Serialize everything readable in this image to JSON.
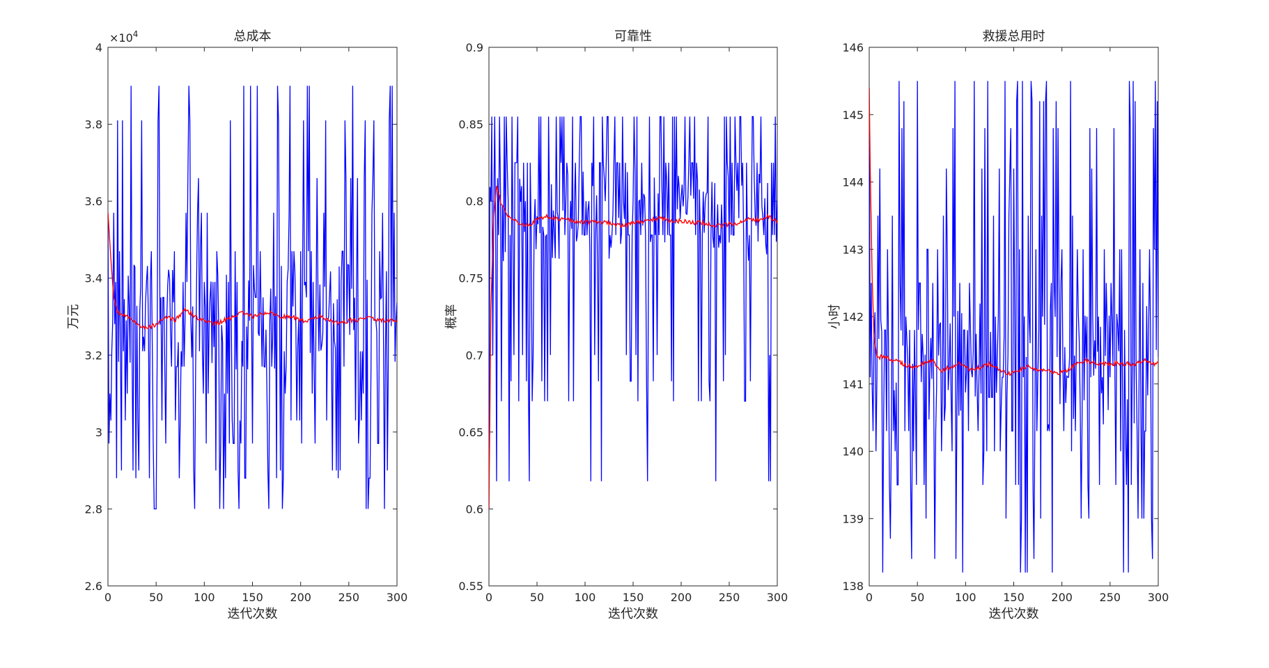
{
  "figure": {
    "background": "#ffffff"
  },
  "colors": {
    "raw": "#0000ff",
    "mean": "#ff0000",
    "axis": "#262626"
  },
  "chart_data": [
    {
      "type": "line",
      "title": "总成本",
      "xlabel": "迭代次数",
      "ylabel": "万元",
      "xlim": [
        0,
        300
      ],
      "ylim": [
        26000,
        40000
      ],
      "xticks": [
        0,
        50,
        100,
        150,
        200,
        250,
        300
      ],
      "xtick_labels": [
        "0",
        "50",
        "100",
        "150",
        "200",
        "250",
        "300"
      ],
      "yticks": [
        26000,
        28000,
        30000,
        32000,
        34000,
        36000,
        38000,
        40000
      ],
      "ytick_labels": [
        "2.6",
        "2.8",
        "3",
        "3.2",
        "3.4",
        "3.6",
        "3.8",
        "4"
      ],
      "yexponent": "×10",
      "yexponent_power": "4",
      "grid": false,
      "series": [
        {
          "color": "#0000ff",
          "style": "oscillating",
          "start": 35700,
          "levels": [
            28000,
            28800,
            29000,
            29700,
            30300,
            31000,
            31700,
            32100,
            32900,
            33500,
            33900,
            34700,
            35700,
            36600,
            38100,
            39000
          ],
          "low": 28000,
          "high": 39000,
          "typical": 33000
        },
        {
          "color": "#ff0000",
          "style": "running-mean",
          "x": [
            0,
            3,
            6,
            10,
            20,
            30,
            40,
            50,
            60,
            70,
            80,
            90,
            100,
            110,
            120,
            130,
            140,
            150,
            160,
            170,
            180,
            190,
            200,
            210,
            220,
            230,
            240,
            250,
            260,
            270,
            280,
            290,
            300
          ],
          "y": [
            35700,
            34500,
            33500,
            33100,
            33000,
            32800,
            32700,
            32800,
            33000,
            32900,
            33200,
            33000,
            32900,
            32800,
            32900,
            33000,
            33100,
            33000,
            33100,
            33100,
            33000,
            33000,
            32900,
            32900,
            33000,
            32900,
            32800,
            32900,
            32900,
            33000,
            32900,
            32900,
            32900
          ]
        }
      ]
    },
    {
      "type": "line",
      "title": "可靠性",
      "xlabel": "迭代次数",
      "ylabel": "概率",
      "xlim": [
        0,
        300
      ],
      "ylim": [
        0.55,
        0.9
      ],
      "xticks": [
        0,
        50,
        100,
        150,
        200,
        250,
        300
      ],
      "xtick_labels": [
        "0",
        "50",
        "100",
        "150",
        "200",
        "250",
        "300"
      ],
      "yticks": [
        0.55,
        0.6,
        0.65,
        0.7,
        0.75,
        0.8,
        0.85,
        0.9
      ],
      "ytick_labels": [
        "0.55",
        "0.6",
        "0.65",
        "0.7",
        "0.75",
        "0.8",
        "0.85",
        "0.9"
      ],
      "grid": false,
      "series": [
        {
          "color": "#0000ff",
          "style": "oscillating",
          "start": 0.6,
          "levels": [
            0.618,
            0.67,
            0.683,
            0.7,
            0.778,
            0.778,
            0.778,
            0.8,
            0.825,
            0.825,
            0.825,
            0.855,
            0.855,
            0.855
          ],
          "low": 0.618,
          "high": 0.855,
          "typical": 0.79
        },
        {
          "color": "#ff0000",
          "style": "running-mean",
          "x": [
            0,
            2,
            5,
            8,
            12,
            20,
            30,
            40,
            50,
            60,
            70,
            80,
            90,
            100,
            110,
            120,
            130,
            140,
            150,
            160,
            170,
            180,
            190,
            200,
            210,
            220,
            230,
            240,
            250,
            260,
            270,
            280,
            290,
            300
          ],
          "y": [
            0.6,
            0.73,
            0.79,
            0.81,
            0.8,
            0.79,
            0.786,
            0.784,
            0.788,
            0.79,
            0.789,
            0.788,
            0.787,
            0.786,
            0.787,
            0.786,
            0.785,
            0.784,
            0.786,
            0.787,
            0.788,
            0.789,
            0.787,
            0.787,
            0.786,
            0.786,
            0.785,
            0.784,
            0.785,
            0.786,
            0.789,
            0.788,
            0.79,
            0.787
          ]
        }
      ]
    },
    {
      "type": "line",
      "title": "救援总用时",
      "xlabel": "迭代次数",
      "ylabel": "小时",
      "xlim": [
        0,
        300
      ],
      "ylim": [
        138,
        146
      ],
      "xticks": [
        0,
        50,
        100,
        150,
        200,
        250,
        300
      ],
      "xtick_labels": [
        "0",
        "50",
        "100",
        "150",
        "200",
        "250",
        "300"
      ],
      "yticks": [
        138,
        139,
        140,
        141,
        142,
        143,
        144,
        145,
        146
      ],
      "ytick_labels": [
        "138",
        "139",
        "140",
        "141",
        "142",
        "143",
        "144",
        "145",
        "146"
      ],
      "grid": false,
      "series": [
        {
          "color": "#0000ff",
          "style": "oscillating",
          "start": 145.4,
          "levels": [
            138.2,
            138.4,
            138.7,
            139.0,
            139.5,
            140.0,
            140.3,
            140.8,
            141.1,
            141.4,
            141.8,
            142.0,
            142.5,
            143.0,
            143.5,
            144.2,
            144.8,
            145.2,
            145.5
          ],
          "low": 138.2,
          "high": 145.5,
          "typical": 141.3
        },
        {
          "color": "#ff0000",
          "style": "running-mean",
          "x": [
            0,
            1,
            3,
            5,
            8,
            15,
            25,
            35,
            45,
            55,
            65,
            75,
            85,
            95,
            105,
            115,
            125,
            135,
            145,
            155,
            165,
            175,
            185,
            195,
            205,
            215,
            225,
            235,
            245,
            255,
            265,
            275,
            285,
            295,
            300
          ],
          "y": [
            145.4,
            144.2,
            142.6,
            141.7,
            141.4,
            141.4,
            141.35,
            141.3,
            141.25,
            141.3,
            141.35,
            141.2,
            141.25,
            141.3,
            141.2,
            141.25,
            141.3,
            141.2,
            141.15,
            141.2,
            141.25,
            141.2,
            141.2,
            141.15,
            141.2,
            141.3,
            141.35,
            141.3,
            141.3,
            141.3,
            141.3,
            141.3,
            141.35,
            141.3,
            141.3
          ]
        }
      ]
    }
  ]
}
